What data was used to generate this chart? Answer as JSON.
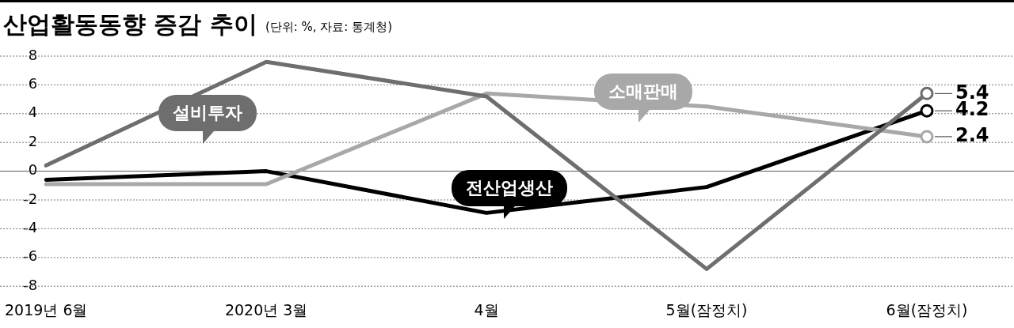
{
  "chart_data": {
    "type": "line",
    "title": "산업활동동향 증감 추이",
    "subtitle": "(단위: %, 자료: 통계청)",
    "categories": [
      "2019년 6월",
      "2020년 3월",
      "4월",
      "5월(잠정치)",
      "6월(잠정치)"
    ],
    "series": [
      {
        "name": "설비투자",
        "color": "#6e6e6e",
        "values": [
          0.4,
          7.6,
          5.2,
          -6.8,
          5.4
        ],
        "value_labels": [
          null,
          null,
          null,
          null,
          "5.4"
        ]
      },
      {
        "name": "소매판매",
        "color": "#a8a8a8",
        "values": [
          -0.9,
          -0.9,
          5.4,
          4.5,
          2.4
        ],
        "value_labels": [
          null,
          null,
          null,
          null,
          "2.4"
        ]
      },
      {
        "name": "전산업생산",
        "color": "#000000",
        "values": [
          -0.6,
          0.0,
          -2.9,
          -1.1,
          4.2
        ],
        "value_labels": [
          null,
          null,
          null,
          null,
          "4.2"
        ]
      }
    ],
    "ylim": [
      -8,
      8
    ],
    "yticks": [
      -8,
      -6,
      -4,
      -2,
      0,
      2,
      4,
      6,
      8
    ],
    "grid": "y",
    "legend": false
  }
}
